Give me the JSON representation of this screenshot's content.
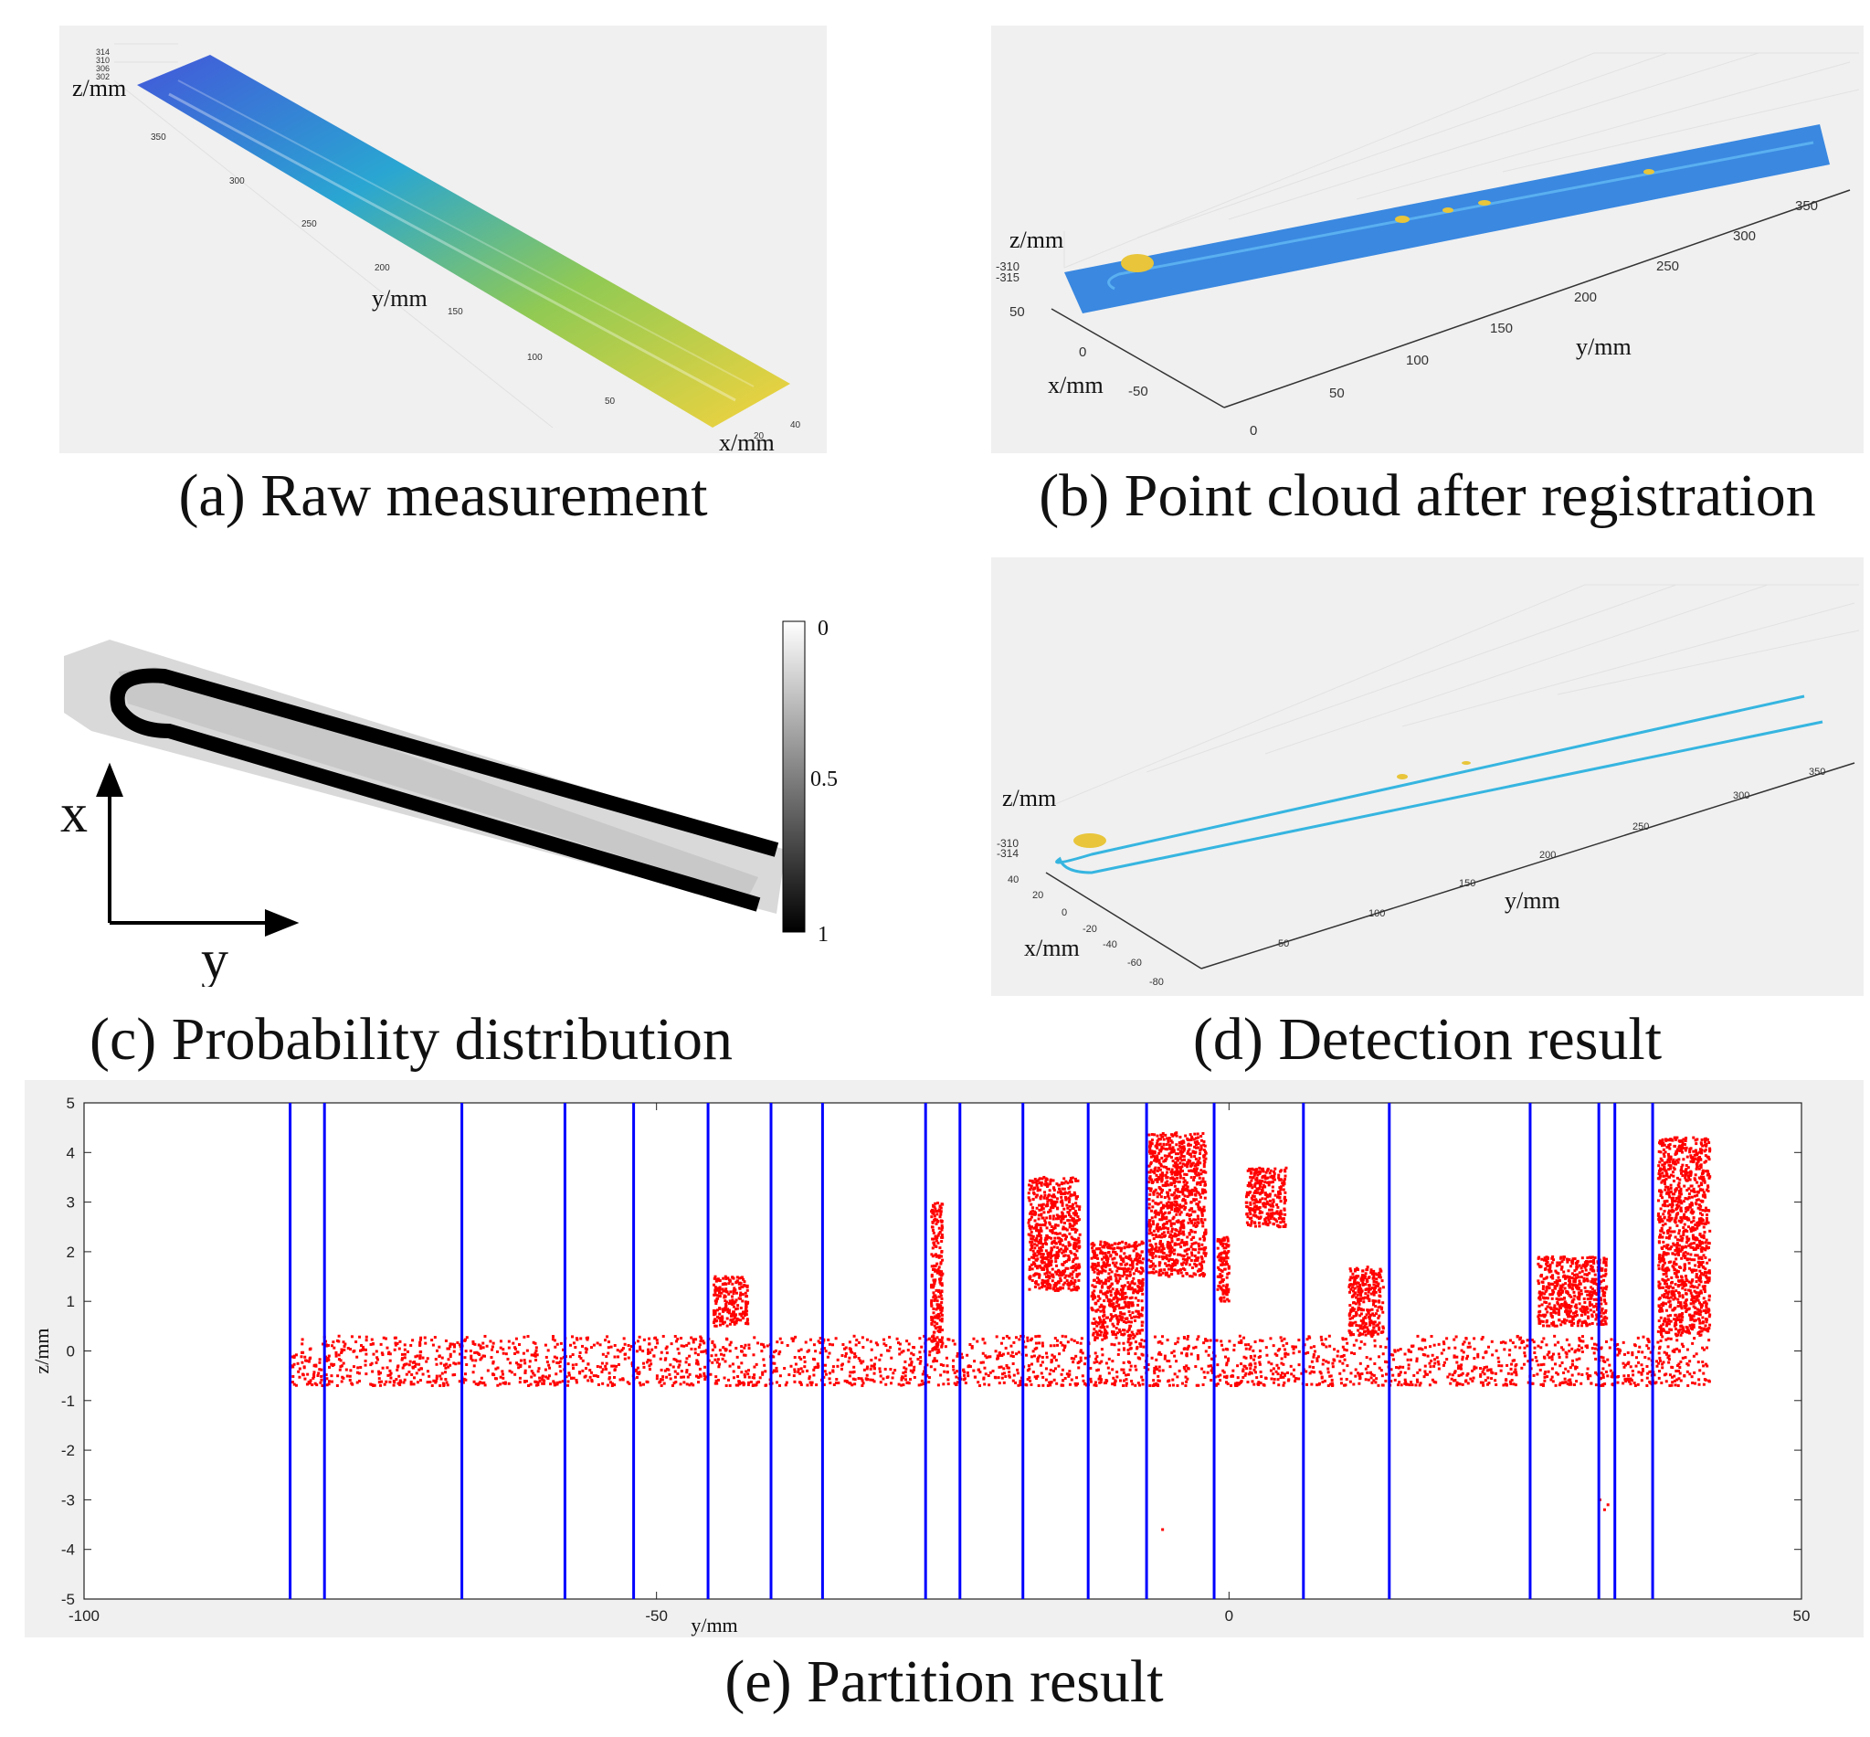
{
  "panels": {
    "a": {
      "caption": "(a) Raw measurement",
      "z_label": "z/mm",
      "y_label": "y/mm",
      "x_label": "x/mm",
      "z_ticks": [
        "314",
        "310",
        "306",
        "302"
      ],
      "y_ticks": [
        "350",
        "300",
        "250",
        "200",
        "150",
        "100",
        "50"
      ],
      "x_ticks": [
        "20",
        "40"
      ]
    },
    "b": {
      "caption": "(b) Point cloud after registration",
      "z_label": "z/mm",
      "y_label": "y/mm",
      "x_label": "x/mm",
      "z_ticks": [
        "-310",
        "-315"
      ],
      "y_ticks": [
        "350",
        "300",
        "250",
        "200",
        "150",
        "100",
        "50",
        "0"
      ],
      "x_ticks": [
        "50",
        "0",
        "-50"
      ]
    },
    "c": {
      "caption": "(c) Probability distribution",
      "axis_x": "x",
      "axis_y": "y",
      "colorbar_ticks": [
        "0",
        "0.5",
        "1"
      ]
    },
    "d": {
      "caption": "(d) Detection result",
      "z_label": "z/mm",
      "y_label": "y/mm",
      "x_label": "x/mm",
      "z_ticks": [
        "-310",
        "-314"
      ],
      "y_ticks": [
        "350",
        "300",
        "250",
        "200",
        "150",
        "100",
        "50"
      ],
      "x_ticks": [
        "40",
        "20",
        "0",
        "-20",
        "-40",
        "-60",
        "-80"
      ]
    },
    "e": {
      "caption": "(e) Partition result"
    }
  },
  "chart_data": {
    "type": "scatter",
    "title": "(e) Partition result",
    "xlabel": "y/mm",
    "ylabel": "z/mm",
    "xlim": [
      -100,
      50
    ],
    "ylim": [
      -5,
      5
    ],
    "xticks": [
      -100,
      -50,
      0,
      50
    ],
    "yticks": [
      -5,
      -4,
      -3,
      -2,
      -1,
      0,
      1,
      2,
      3,
      4,
      5
    ],
    "partition_lines_y": [
      -82,
      -79,
      -67,
      -58,
      -52,
      -45.5,
      -40,
      -35.5,
      -26.5,
      -23.5,
      -18,
      -12.3,
      -7.2,
      -1.3,
      6.5,
      14,
      26.3,
      32.3,
      33.7,
      37
    ],
    "series": [
      {
        "name": "points",
        "color": "#ff0000",
        "baseline_band": {
          "y_range": [
            -82,
            42
          ],
          "z_range": [
            -0.7,
            0.3
          ]
        },
        "clusters": [
          {
            "y_range": [
              -45,
              -42
            ],
            "z_range": [
              0.5,
              1.5
            ]
          },
          {
            "y_range": [
              -26,
              -25
            ],
            "z_range": [
              0,
              3
            ]
          },
          {
            "y_range": [
              -17.5,
              -13
            ],
            "z_range": [
              1.2,
              3.5
            ]
          },
          {
            "y_range": [
              -12,
              -7.5
            ],
            "z_range": [
              0.3,
              2.2
            ]
          },
          {
            "y_range": [
              -7,
              -2
            ],
            "z_range": [
              1.5,
              4.4
            ]
          },
          {
            "y_range": [
              -1,
              0
            ],
            "z_range": [
              1,
              2.3
            ]
          },
          {
            "y_range": [
              1.5,
              5
            ],
            "z_range": [
              2.5,
              3.7
            ]
          },
          {
            "y_range": [
              10.5,
              13.5
            ],
            "z_range": [
              0.3,
              1.7
            ]
          },
          {
            "y_range": [
              27,
              33
            ],
            "z_range": [
              0.5,
              1.9
            ]
          },
          {
            "y_range": [
              37.5,
              42
            ],
            "z_range": [
              0.3,
              4.3
            ]
          }
        ],
        "outliers": [
          [
            -5.8,
            -3.6
          ],
          [
            32.4,
            -3.0
          ],
          [
            32.8,
            -3.2
          ],
          [
            33.1,
            -3.1
          ]
        ]
      }
    ]
  },
  "colors": {
    "partition_line": "#0000ff",
    "points": "#ff0000",
    "panel_background": "#f0f0f0"
  }
}
